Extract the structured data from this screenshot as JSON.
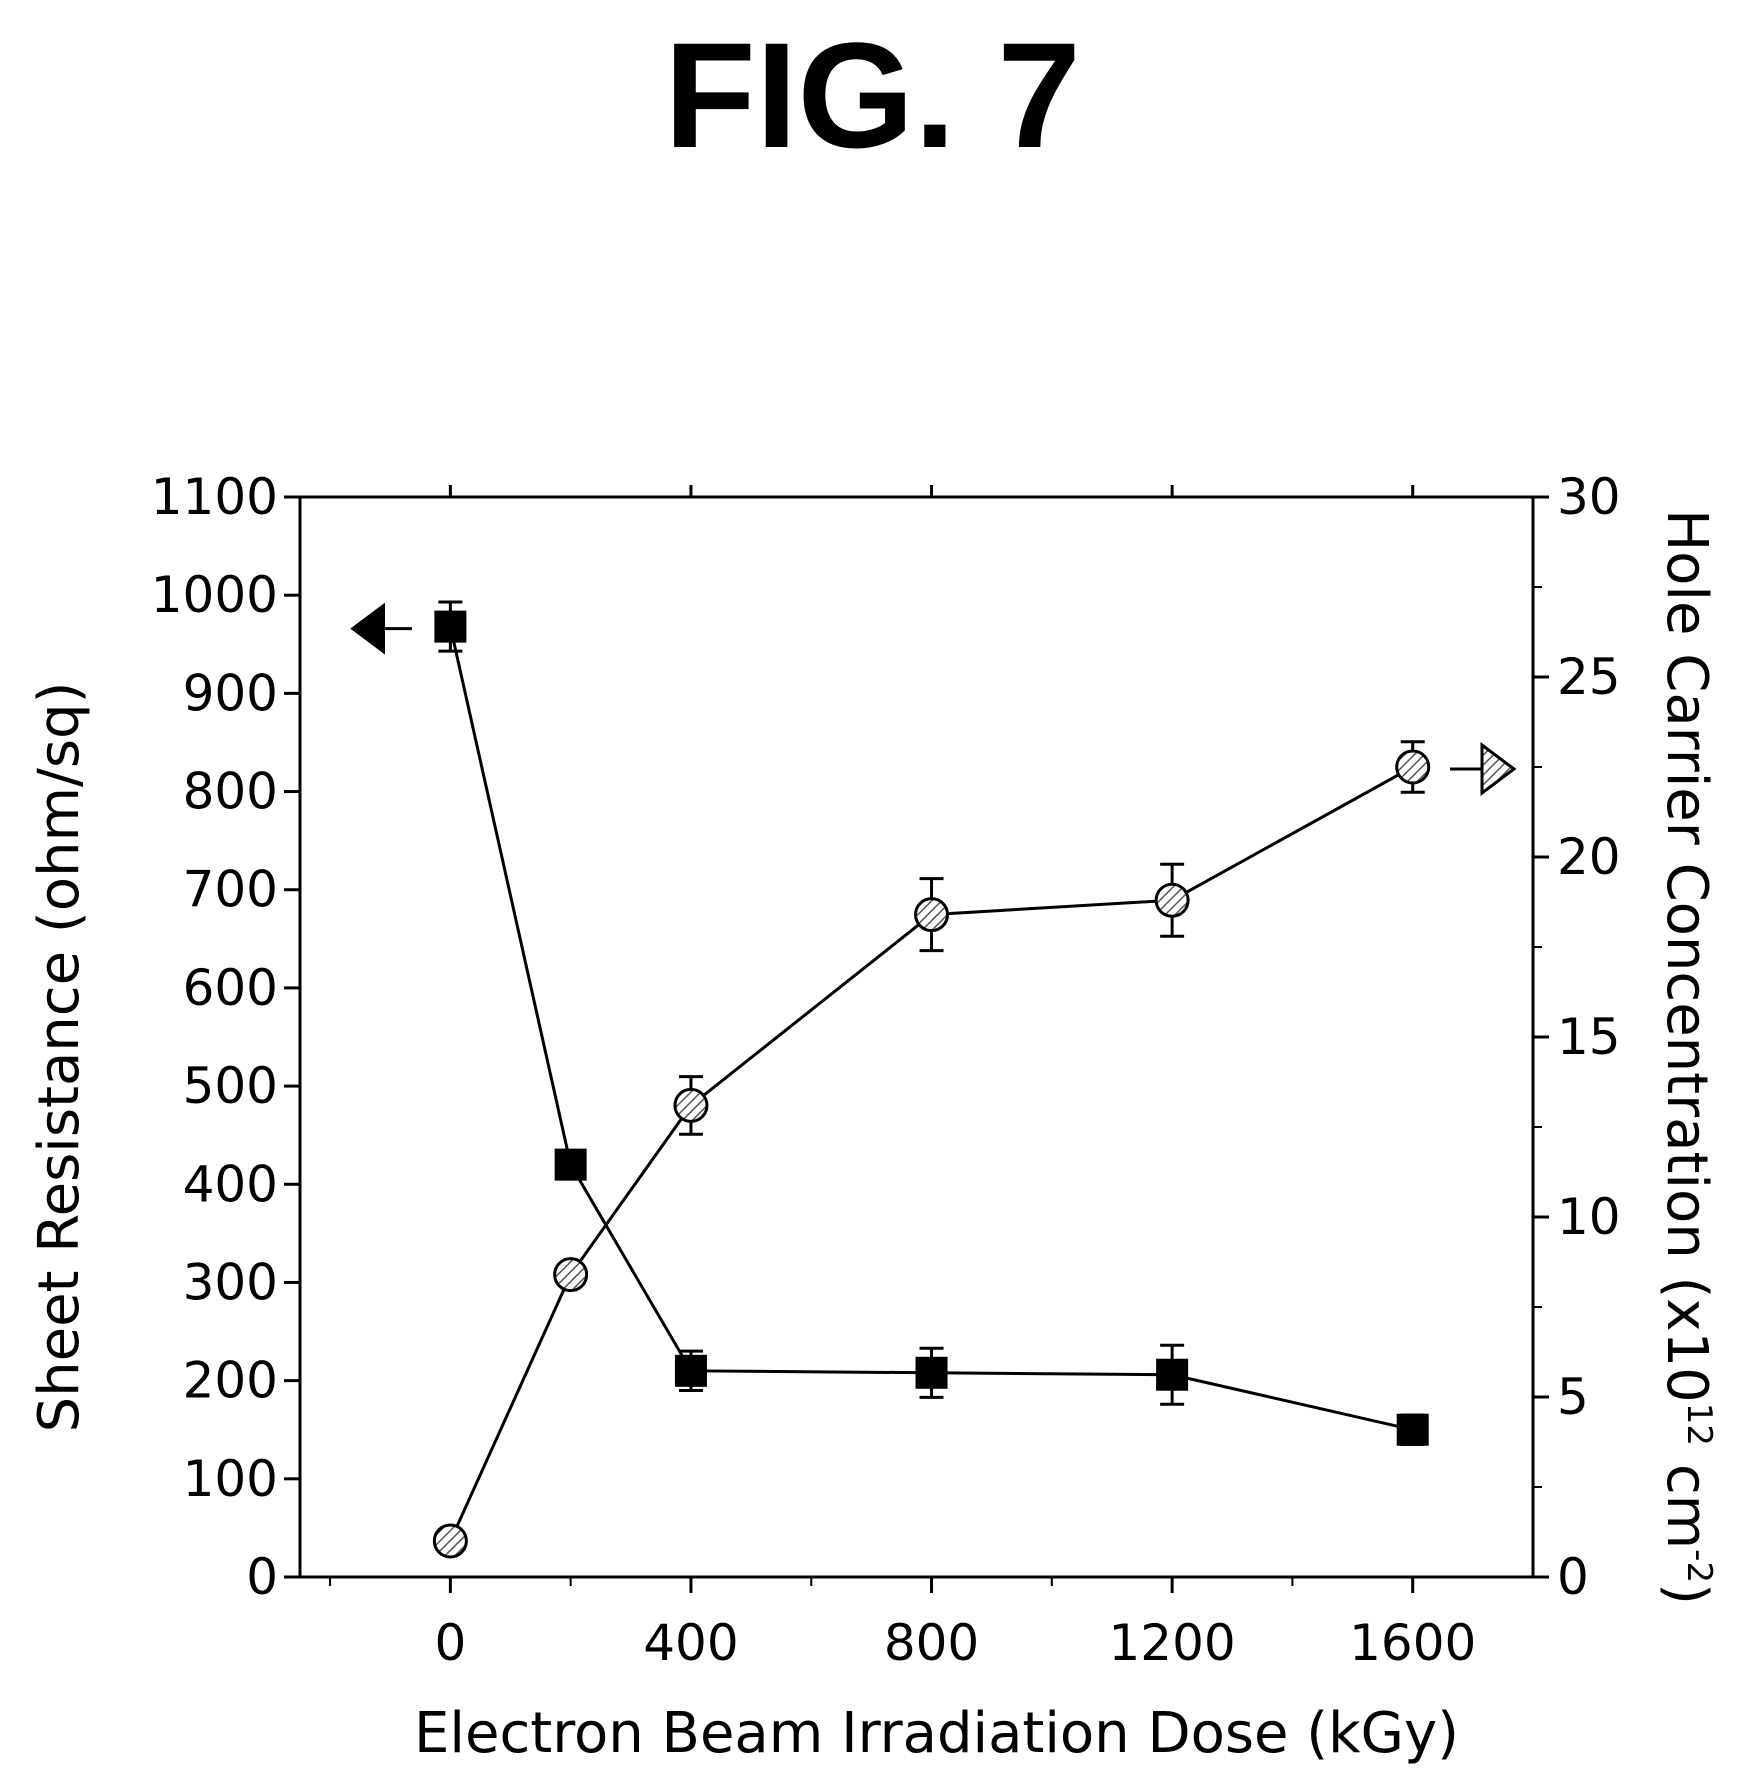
{
  "figure": {
    "title": "FIG. 7"
  },
  "chart_data": {
    "type": "line",
    "xlabel": "Electron Beam Irradiation Dose (kGy)",
    "ylabel_left": "Sheet Resistance (ohm/sq)",
    "ylabel_right_prefix": "Hole Carrier Concentration (x10",
    "ylabel_right_sup1": "12",
    "ylabel_right_mid": " cm",
    "ylabel_right_sup2": "-2",
    "ylabel_right_suffix": ")",
    "xlim": [
      -250,
      1800
    ],
    "ylim_left": [
      0,
      1100
    ],
    "ylim_right": [
      0,
      30
    ],
    "xticks": [
      0,
      400,
      800,
      1200,
      1600
    ],
    "xminor": [
      -200,
      200,
      600,
      1000,
      1400
    ],
    "yticks_left": [
      0,
      100,
      200,
      300,
      400,
      500,
      600,
      700,
      800,
      900,
      1000,
      1100
    ],
    "yticks_right": [
      0,
      5,
      10,
      15,
      20,
      25,
      30
    ],
    "yminor_right": [
      2.5,
      7.5,
      12.5,
      17.5,
      22.5,
      27.5
    ],
    "grid": false,
    "series": [
      {
        "axis": "left",
        "marker": "square",
        "color": "#000000",
        "x": [
          0,
          200,
          400,
          800,
          1200,
          1600
        ],
        "y": [
          968,
          420,
          210,
          208,
          206,
          150
        ],
        "err": [
          25,
          10,
          20,
          25,
          30,
          15
        ],
        "indicator": "left-arrow"
      },
      {
        "axis": "right",
        "marker": "hatched-circle",
        "color": "#888888",
        "x": [
          0,
          200,
          400,
          800,
          1200,
          1600
        ],
        "y": [
          1.0,
          8.4,
          13.1,
          18.4,
          18.8,
          22.5
        ],
        "err": [
          0.2,
          0.3,
          0.8,
          1.0,
          1.0,
          0.7
        ],
        "indicator": "right-arrow"
      }
    ]
  }
}
